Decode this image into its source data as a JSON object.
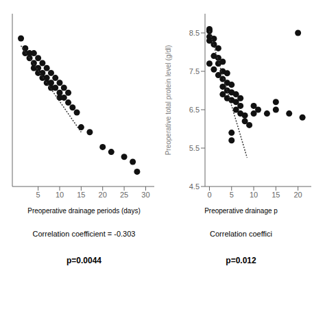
{
  "chart_data": [
    {
      "type": "scatter",
      "x": [
        1,
        2,
        2,
        3,
        3,
        4,
        4,
        4,
        5,
        5,
        5,
        6,
        6,
        6,
        7,
        7,
        7,
        8,
        8,
        8,
        9,
        9,
        10,
        10,
        10,
        11,
        11,
        12,
        12,
        13,
        14,
        15,
        17,
        20,
        22,
        25,
        27,
        28
      ],
      "values": [
        143,
        141,
        140,
        139,
        140,
        138,
        140,
        137,
        139,
        137,
        136,
        138,
        136,
        135,
        137,
        135,
        134,
        136,
        134,
        133,
        135,
        133,
        134,
        132,
        131,
        133,
        131,
        132,
        130,
        129,
        128,
        125,
        124,
        121,
        120,
        119,
        118,
        116
      ],
      "color": "#111111",
      "trendline": {
        "x": [
          1,
          15
        ],
        "values": [
          141.5,
          124
        ],
        "color": "#333333",
        "line_style": "dotted"
      },
      "xlabel": "Preoperative drainage periods (days)",
      "xlim": [
        -1,
        32
      ],
      "ylim": [
        113,
        148
      ],
      "xticks": [
        5,
        10,
        15,
        20,
        25,
        30
      ],
      "yticks": [],
      "tick_labels": "x",
      "grid": false,
      "annotations": [
        "Correlation coefficient = -0.303",
        "p=0.0044"
      ]
    },
    {
      "type": "scatter",
      "x": [
        0,
        0,
        0,
        0,
        0,
        1,
        1,
        1,
        1,
        2,
        2,
        2,
        2,
        3,
        3,
        3,
        3,
        3,
        4,
        4,
        4,
        4,
        5,
        5,
        5,
        5,
        5,
        6,
        6,
        6,
        7,
        7,
        7,
        8,
        8,
        9,
        10,
        10,
        11,
        13,
        15,
        15,
        18,
        20,
        21
      ],
      "values": [
        8.6,
        8.55,
        8.4,
        8.3,
        7.7,
        8.35,
        8.2,
        7.9,
        7.55,
        8.1,
        7.85,
        7.7,
        7.4,
        7.75,
        7.5,
        7.3,
        7.1,
        6.9,
        7.45,
        7.2,
        7.0,
        6.8,
        7.15,
        6.95,
        6.75,
        5.9,
        5.7,
        6.9,
        6.7,
        6.5,
        6.8,
        6.6,
        6.4,
        6.35,
        6.2,
        6.1,
        6.6,
        6.4,
        6.5,
        6.4,
        6.7,
        6.5,
        6.4,
        8.5,
        6.3
      ],
      "color": "#111111",
      "trendline": {
        "x": [
          0,
          8.5
        ],
        "values": [
          8.55,
          5.25
        ],
        "color": "#333333",
        "line_style": "dotted"
      },
      "xlabel": "Preoperative drainage p",
      "ylabel": "Preoperative total protein level (g/dl)",
      "xlim": [
        -1,
        23
      ],
      "ylim": [
        4.5,
        9.0
      ],
      "xticks": [
        0,
        5,
        10,
        15,
        20
      ],
      "yticks": [
        4.5,
        5.5,
        6.5,
        7.5,
        8.5
      ],
      "grid": false,
      "annotations": [
        "Correlation coeffici",
        "p=0.012"
      ]
    }
  ]
}
